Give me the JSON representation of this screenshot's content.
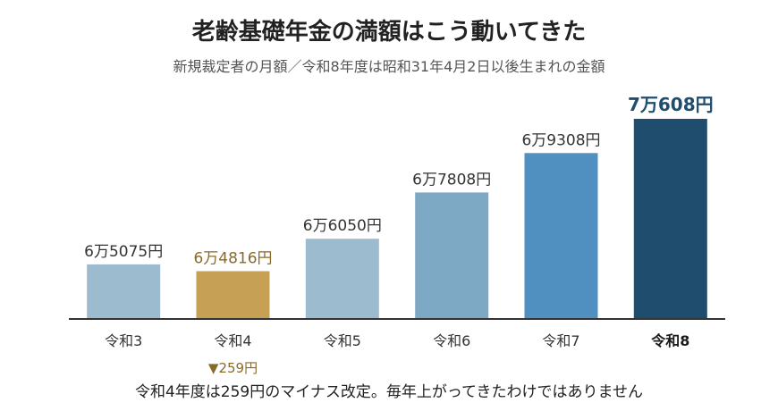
{
  "chart_data": {
    "type": "bar",
    "title": "老齢基礎年金の満額はこう動いてきた",
    "subtitle": "新規裁定者の月額／令和8年度は昭和31年4月2日以後生まれの金額",
    "categories": [
      "令和3",
      "令和4",
      "令和5",
      "令和6",
      "令和7",
      "令和8"
    ],
    "values": [
      65075,
      64816,
      66050,
      67808,
      69308,
      70608
    ],
    "value_labels": [
      "6万5075円",
      "6万4816円",
      "6万6050円",
      "6万7808円",
      "6万9308円",
      "7万608円"
    ],
    "bar_colors": [
      "#9dbbcf",
      "#c6a055",
      "#9dbbcf",
      "#7ea9c4",
      "#4f90c0",
      "#1e4d6e"
    ],
    "label_colors": [
      "#333333",
      "#8a6a2a",
      "#333333",
      "#333333",
      "#333333",
      "#1e4d6e"
    ],
    "emphasis_index": 5,
    "highlight_index": 1,
    "ylim": [
      63000,
      71000
    ],
    "grid": false,
    "annotation": {
      "text": "▼259円",
      "category": "令和4",
      "color": "#8a6a2a"
    },
    "footnote": "令和4年度は259円のマイナス改定。毎年上がってきたわけではありません"
  }
}
